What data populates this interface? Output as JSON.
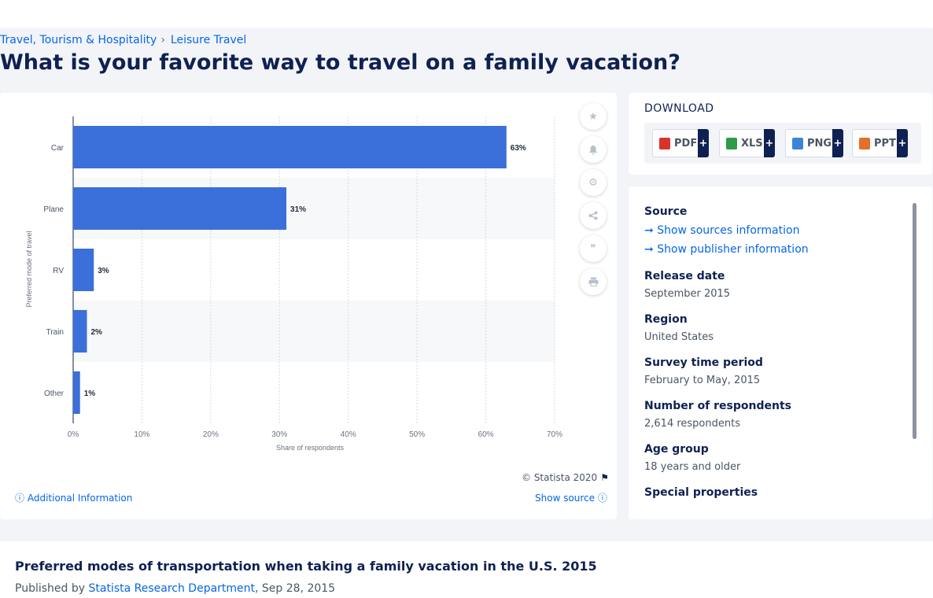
{
  "breadcrumb": {
    "items": [
      "Travel, Tourism & Hospitality",
      "Leisure Travel"
    ],
    "separator": "›"
  },
  "page_title": "What is your favorite way to travel on a family vacation?",
  "chart_data": {
    "type": "bar",
    "orientation": "horizontal",
    "categories": [
      "Car",
      "Plane",
      "RV",
      "Train",
      "Other"
    ],
    "values": [
      63,
      31,
      3,
      2,
      1
    ],
    "data_labels": [
      "63%",
      "31%",
      "3%",
      "2%",
      "1%"
    ],
    "xlabel": "Share of respondents",
    "ylabel": "Preferred mode of travel",
    "xlim": [
      0,
      70
    ],
    "xticks": [
      "0%",
      "10%",
      "20%",
      "30%",
      "40%",
      "50%",
      "60%",
      "70%"
    ],
    "grid": true,
    "bar_color": "#3b6fd9"
  },
  "chart_footer": {
    "copyright": "© Statista 2020",
    "additional_info": "Additional Information",
    "show_source": "Show source"
  },
  "side_buttons": [
    "star-icon",
    "bell-icon",
    "gear-icon",
    "share-icon",
    "quote-icon",
    "print-icon"
  ],
  "download": {
    "title": "DOWNLOAD",
    "formats": [
      {
        "label": "PDF",
        "color": "#d9342b"
      },
      {
        "label": "XLS",
        "color": "#2e9b48"
      },
      {
        "label": "PNG",
        "color": "#3f83d8"
      },
      {
        "label": "PPT",
        "color": "#e2702a"
      }
    ],
    "plus": "+"
  },
  "info": {
    "source_label": "Source",
    "show_sources": "Show sources information",
    "show_publisher": "Show publisher information",
    "release_date_label": "Release date",
    "release_date": "September 2015",
    "region_label": "Region",
    "region": "United States",
    "survey_period_label": "Survey time period",
    "survey_period": "February to May, 2015",
    "respondents_label": "Number of respondents",
    "respondents": "2,614 respondents",
    "age_group_label": "Age group",
    "age_group": "18 years and older",
    "special_label": "Special properties"
  },
  "bottom": {
    "title": "Preferred modes of transportation when taking a family vacation in the U.S. 2015",
    "published_prefix": "Published by",
    "publisher": "Statista Research Department",
    "date": ", Sep 28, 2015"
  },
  "colors": {
    "accent": "#0666e5",
    "navy": "#0f2152",
    "bar": "#3b6fd9"
  }
}
